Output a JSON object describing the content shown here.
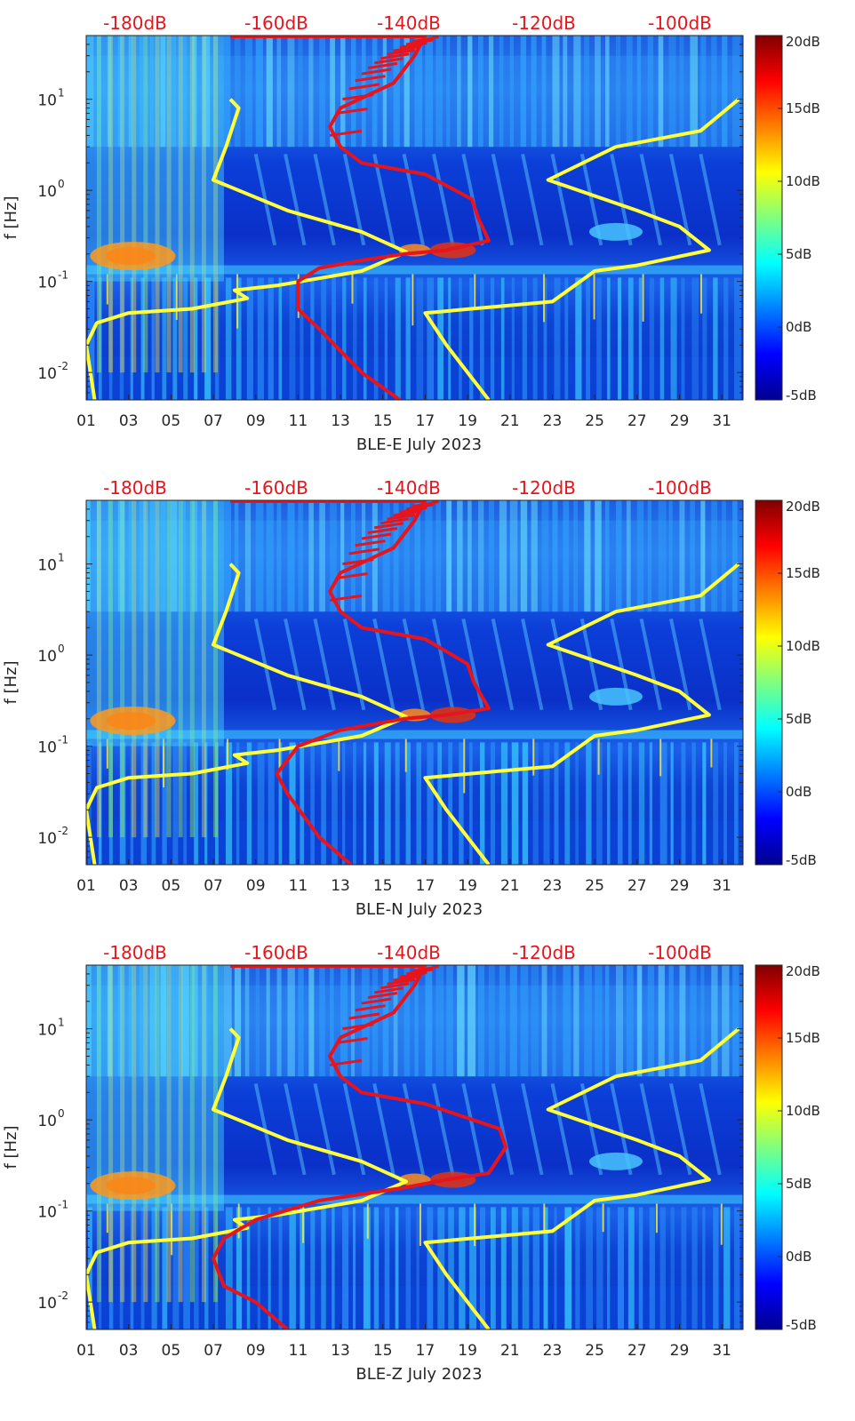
{
  "chart_data": [
    {
      "type": "heatmap",
      "xlabel": "BLE-E July 2023",
      "ylabel": "f [Hz]",
      "x_tick_labels": [
        "01",
        "03",
        "05",
        "07",
        "09",
        "11",
        "13",
        "15",
        "17",
        "19",
        "21",
        "23",
        "25",
        "27",
        "29",
        "31"
      ],
      "x_range_days": [
        1,
        32
      ],
      "y_scale": "log",
      "y_range_hz": [
        0.005,
        50
      ],
      "y_tick_labels": [
        "10^-2",
        "10^-1",
        "10^0",
        "10^1"
      ],
      "top_axis_labels": [
        "-180dB",
        "-160dB",
        "-140dB",
        "-120dB",
        "-100dB"
      ],
      "colorbar": {
        "range_db": [
          -5,
          20
        ],
        "tick_labels": [
          "20dB",
          "15dB",
          "10dB",
          "5dB",
          "0dB",
          "-5dB"
        ]
      },
      "series": [
        {
          "color": "#ffff3c",
          "points": [
            [
              7.8,
              10
            ],
            [
              8.2,
              8
            ],
            [
              7.6,
              3
            ],
            [
              7,
              1.3
            ],
            [
              10.5,
              0.6
            ],
            [
              14,
              0.35
            ],
            [
              16.1,
              0.21
            ],
            [
              14,
              0.13
            ],
            [
              10,
              0.09
            ],
            [
              8,
              0.08
            ],
            [
              8.6,
              0.065
            ],
            [
              6,
              0.05
            ],
            [
              3,
              0.045
            ],
            [
              1.5,
              0.035
            ],
            [
              1,
              0.02
            ],
            [
              1.4,
              0.005
            ]
          ]
        },
        {
          "color": "#ffff3c",
          "points": [
            [
              31.8,
              10
            ],
            [
              30,
              4.5
            ],
            [
              26,
              3
            ],
            [
              22.8,
              1.3
            ],
            [
              27,
              0.6
            ],
            [
              29,
              0.4
            ],
            [
              30.4,
              0.22
            ],
            [
              27,
              0.15
            ],
            [
              25,
              0.13
            ],
            [
              23,
              0.06
            ],
            [
              17,
              0.045
            ],
            [
              18,
              0.02
            ],
            [
              20,
              0.005
            ]
          ]
        },
        {
          "color": "#e8141c",
          "points": [
            [
              17,
              50
            ],
            [
              16.5,
              30
            ],
            [
              15.5,
              15
            ],
            [
              13,
              8
            ],
            [
              12.5,
              5
            ],
            [
              13,
              3
            ],
            [
              14,
              2
            ],
            [
              17,
              1.5
            ],
            [
              19.2,
              0.8
            ],
            [
              19.5,
              0.5
            ],
            [
              20,
              0.28
            ],
            [
              18,
              0.22
            ],
            [
              16,
              0.2
            ],
            [
              14,
              0.17
            ],
            [
              12,
              0.14
            ],
            [
              11,
              0.1
            ],
            [
              11,
              0.05
            ],
            [
              12,
              0.03
            ],
            [
              14,
              0.01
            ],
            [
              15.8,
              0.005
            ]
          ]
        }
      ]
    },
    {
      "type": "heatmap",
      "xlabel": "BLE-N July 2023",
      "ylabel": "f [Hz]",
      "x_tick_labels": [
        "01",
        "03",
        "05",
        "07",
        "09",
        "11",
        "13",
        "15",
        "17",
        "19",
        "21",
        "23",
        "25",
        "27",
        "29",
        "31"
      ],
      "x_range_days": [
        1,
        32
      ],
      "y_scale": "log",
      "y_range_hz": [
        0.005,
        50
      ],
      "y_tick_labels": [
        "10^-2",
        "10^-1",
        "10^0",
        "10^1"
      ],
      "top_axis_labels": [
        "-180dB",
        "-160dB",
        "-140dB",
        "-120dB",
        "-100dB"
      ],
      "colorbar": {
        "range_db": [
          -5,
          20
        ],
        "tick_labels": [
          "20dB",
          "15dB",
          "10dB",
          "5dB",
          "0dB",
          "-5dB"
        ]
      },
      "series": [
        {
          "color": "#ffff3c",
          "points": [
            [
              7.8,
              10
            ],
            [
              8.2,
              8
            ],
            [
              7.6,
              3
            ],
            [
              7,
              1.3
            ],
            [
              10.5,
              0.6
            ],
            [
              14,
              0.35
            ],
            [
              16.1,
              0.21
            ],
            [
              14,
              0.13
            ],
            [
              10,
              0.09
            ],
            [
              8,
              0.08
            ],
            [
              8.6,
              0.065
            ],
            [
              6,
              0.05
            ],
            [
              3,
              0.045
            ],
            [
              1.5,
              0.035
            ],
            [
              1,
              0.02
            ],
            [
              1.4,
              0.005
            ]
          ]
        },
        {
          "color": "#ffff3c",
          "points": [
            [
              31.8,
              10
            ],
            [
              30,
              4.5
            ],
            [
              26,
              3
            ],
            [
              22.8,
              1.3
            ],
            [
              27,
              0.6
            ],
            [
              29,
              0.4
            ],
            [
              30.4,
              0.22
            ],
            [
              27,
              0.15
            ],
            [
              25,
              0.13
            ],
            [
              23,
              0.06
            ],
            [
              17,
              0.045
            ],
            [
              18,
              0.02
            ],
            [
              20,
              0.005
            ]
          ]
        },
        {
          "color": "#e8141c",
          "points": [
            [
              17,
              50
            ],
            [
              16.5,
              30
            ],
            [
              15.5,
              15
            ],
            [
              13,
              8
            ],
            [
              12.5,
              5
            ],
            [
              13,
              3
            ],
            [
              14,
              2
            ],
            [
              17,
              1.5
            ],
            [
              19,
              0.8
            ],
            [
              19.3,
              0.5
            ],
            [
              20,
              0.26
            ],
            [
              18,
              0.22
            ],
            [
              16,
              0.2
            ],
            [
              13,
              0.15
            ],
            [
              11,
              0.1
            ],
            [
              10,
              0.05
            ],
            [
              10.5,
              0.03
            ],
            [
              12,
              0.01
            ],
            [
              13.5,
              0.005
            ]
          ]
        }
      ]
    },
    {
      "type": "heatmap",
      "xlabel": "BLE-Z July 2023",
      "ylabel": "f [Hz]",
      "x_tick_labels": [
        "01",
        "03",
        "05",
        "07",
        "09",
        "11",
        "13",
        "15",
        "17",
        "19",
        "21",
        "23",
        "25",
        "27",
        "29",
        "31"
      ],
      "x_range_days": [
        1,
        32
      ],
      "y_scale": "log",
      "y_range_hz": [
        0.005,
        50
      ],
      "y_tick_labels": [
        "10^-2",
        "10^-1",
        "10^0",
        "10^1"
      ],
      "top_axis_labels": [
        "-180dB",
        "-160dB",
        "-140dB",
        "-120dB",
        "-100dB"
      ],
      "colorbar": {
        "range_db": [
          -5,
          20
        ],
        "tick_labels": [
          "20dB",
          "15dB",
          "10dB",
          "5dB",
          "0dB",
          "-5dB"
        ]
      },
      "series": [
        {
          "color": "#ffff3c",
          "points": [
            [
              7.8,
              10
            ],
            [
              8.2,
              8
            ],
            [
              7.6,
              3
            ],
            [
              7,
              1.3
            ],
            [
              10.5,
              0.6
            ],
            [
              14,
              0.35
            ],
            [
              16.1,
              0.21
            ],
            [
              14,
              0.13
            ],
            [
              10,
              0.09
            ],
            [
              8,
              0.08
            ],
            [
              8.6,
              0.065
            ],
            [
              6,
              0.05
            ],
            [
              3,
              0.045
            ],
            [
              1.5,
              0.035
            ],
            [
              1,
              0.02
            ],
            [
              1.4,
              0.005
            ]
          ]
        },
        {
          "color": "#ffff3c",
          "points": [
            [
              31.8,
              10
            ],
            [
              30,
              4.5
            ],
            [
              26,
              3
            ],
            [
              22.8,
              1.3
            ],
            [
              27,
              0.6
            ],
            [
              29,
              0.4
            ],
            [
              30.4,
              0.22
            ],
            [
              27,
              0.15
            ],
            [
              25,
              0.13
            ],
            [
              23,
              0.06
            ],
            [
              17,
              0.045
            ],
            [
              18,
              0.02
            ],
            [
              20,
              0.005
            ]
          ]
        },
        {
          "color": "#e8141c",
          "points": [
            [
              17,
              50
            ],
            [
              16.5,
              30
            ],
            [
              15.5,
              15
            ],
            [
              13,
              8
            ],
            [
              12.5,
              5
            ],
            [
              13,
              3
            ],
            [
              14,
              2
            ],
            [
              17,
              1.5
            ],
            [
              20.5,
              0.8
            ],
            [
              20.8,
              0.5
            ],
            [
              20,
              0.26
            ],
            [
              18,
              0.22
            ],
            [
              16,
              0.18
            ],
            [
              12,
              0.13
            ],
            [
              9,
              0.08
            ],
            [
              7.5,
              0.05
            ],
            [
              7,
              0.03
            ],
            [
              7.5,
              0.015
            ],
            [
              9,
              0.01
            ],
            [
              10.5,
              0.005
            ]
          ]
        }
      ]
    }
  ]
}
